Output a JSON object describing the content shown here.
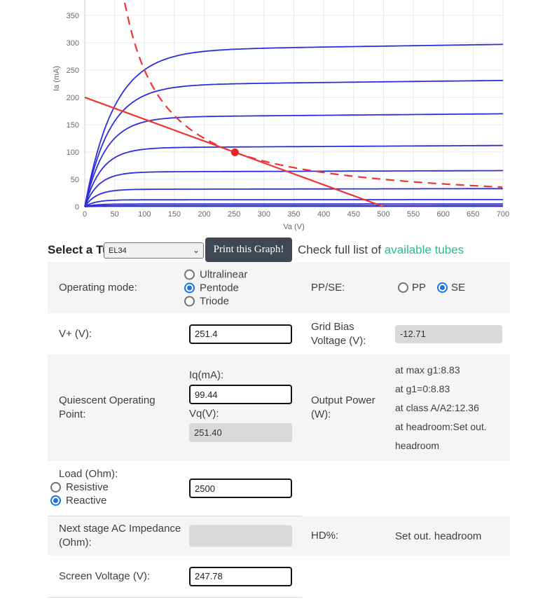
{
  "chart_data": {
    "type": "line",
    "title": "",
    "xlabel": "Va (V)",
    "ylabel": "Ia (mA)",
    "xlim": [
      0,
      700
    ],
    "ylim": [
      0,
      378
    ],
    "grid": true,
    "x_ticks": [
      0,
      50,
      100,
      150,
      200,
      250,
      300,
      350,
      400,
      450,
      500,
      550,
      600,
      650,
      700
    ],
    "y_ticks": [
      0,
      50,
      100,
      150,
      200,
      250,
      300,
      350
    ],
    "anode_curve_plateaus_mA": [
      297,
      231,
      170,
      112,
      66,
      33,
      13,
      5,
      2,
      0.8
    ],
    "load_line": {
      "x": [
        0,
        500
      ],
      "y": [
        200,
        0
      ],
      "resistance_ohm": 2500
    },
    "dissipation_hyperbola_w": 25,
    "q_point": {
      "va": 251.4,
      "ia_ma": 99.44
    },
    "colors": {
      "curve": "#2e2edd",
      "red": "#ee3434",
      "dot": "#e62626",
      "grid": "#e8e8e8",
      "axis": "#cccccc",
      "tick_text": "#66696c"
    }
  },
  "controls": {
    "select_label": "Select a Tube:",
    "tube_value": "EL34",
    "print_button": "Print this Graph!",
    "check_text": "Check full list of ",
    "link_text": "available tubes"
  },
  "form": {
    "operating_mode": {
      "label": "Operating mode:",
      "opt1": "Ultralinear",
      "opt2": "Pentode",
      "opt3": "Triode",
      "selected": "Pentode"
    },
    "ppse": {
      "label": "PP/SE:",
      "opt1": "PP",
      "opt2": "SE",
      "selected": "SE"
    },
    "vplus": {
      "label": "V+ (V):",
      "value": "251.4"
    },
    "grid_bias": {
      "label": "Grid Bias Voltage (V):",
      "value": "-12.71"
    },
    "qpoint": {
      "label": "Quiescent Operating Point:",
      "iq_label": "Iq(mA):",
      "iq_value": "99.44",
      "vq_label": "Vq(V):",
      "vq_value": "251.40"
    },
    "output_power": {
      "label": "Output Power (W):",
      "line1": "at max g1:8.83",
      "line2": "at g1=0:8.83",
      "line3": "at class A/A2:12.36",
      "line4": "at headroom:Set out. headroom"
    },
    "load": {
      "label": "Load (Ohm):",
      "opt1": "Resistive",
      "opt2": "Reactive",
      "selected": "Reactive",
      "value": "2500"
    },
    "next_stage": {
      "label": "Next stage AC Impedance (Ohm):",
      "value": ""
    },
    "hd": {
      "label": "HD%:",
      "value": "Set out. headroom"
    },
    "screen_voltage": {
      "label": "Screen Voltage (V):",
      "value": "247.78"
    }
  }
}
